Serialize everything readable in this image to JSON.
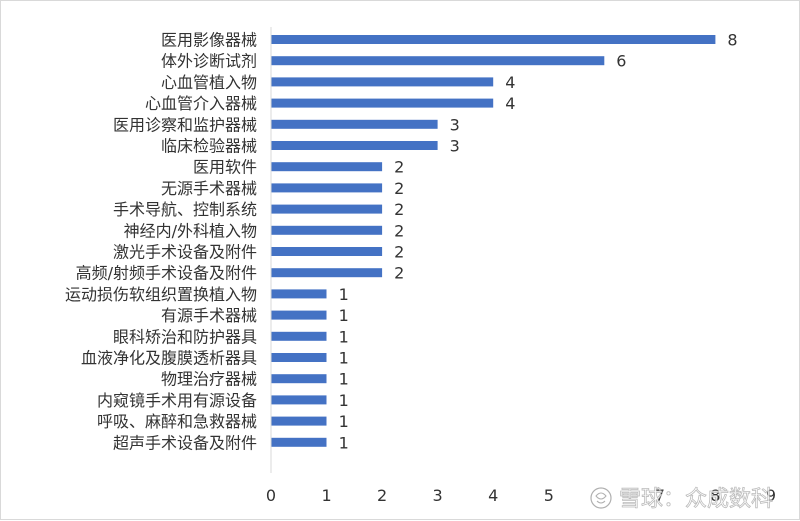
{
  "chart_data": {
    "type": "bar",
    "orientation": "horizontal",
    "categories": [
      "医用影像器械",
      "体外诊断试剂",
      "心血管植入物",
      "心血管介入器械",
      "医用诊察和监护器械",
      "临床检验器械",
      "医用软件",
      "无源手术器械",
      "手术导航、控制系统",
      "神经内/外科植入物",
      "激光手术设备及附件",
      "高频/射频手术设备及附件",
      "运动损伤软组织置换植入物",
      "有源手术器械",
      "眼科矫治和防护器具",
      "血液净化及腹膜透析器具",
      "物理治疗器械",
      "内窥镜手术用有源设备",
      "呼吸、麻醉和急救器械",
      "超声手术设备及附件"
    ],
    "values": [
      8,
      6,
      4,
      4,
      3,
      3,
      2,
      2,
      2,
      2,
      2,
      2,
      1,
      1,
      1,
      1,
      1,
      1,
      1,
      1
    ],
    "title": "",
    "xlabel": "",
    "ylabel": "",
    "xlim": [
      0,
      9
    ],
    "xticks": [
      "0",
      "1",
      "2",
      "3",
      "4",
      "5",
      "6",
      "7",
      "8",
      "9"
    ],
    "bar_color": "#4472C4",
    "data_labels": true,
    "grid": false,
    "legend": "none"
  },
  "watermark": {
    "text": "雪球：众成数科",
    "icon": "snowball-icon"
  }
}
